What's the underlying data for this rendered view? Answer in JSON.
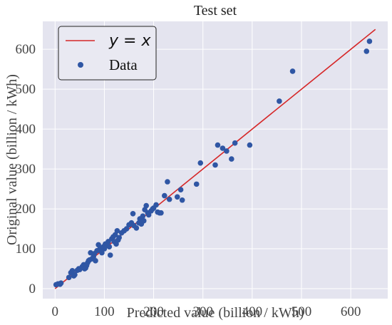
{
  "chart_data": {
    "type": "scatter",
    "title": "Test set",
    "xlabel": "Predicted value (billion / kWh)",
    "ylabel": "Original value (billion / kWh)",
    "xlim": [
      -25,
      675
    ],
    "ylim": [
      -25,
      670
    ],
    "xticks": [
      0,
      100,
      200,
      300,
      400,
      500,
      600
    ],
    "yticks": [
      0,
      100,
      200,
      300,
      400,
      500,
      600
    ],
    "grid": true,
    "legend_position": "top-left",
    "colors": {
      "background": "#e4e4ef",
      "grid": "#ffffff",
      "line": "#d62728",
      "points": "#2f56a4"
    },
    "series": [
      {
        "name": "y = x",
        "type": "line",
        "legend_math": {
          "left": "y",
          "op": " = ",
          "right": "x"
        },
        "x": [
          0,
          650
        ],
        "y": [
          0,
          650
        ]
      },
      {
        "name": "Data",
        "type": "scatter",
        "points": [
          [
            2,
            10
          ],
          [
            6,
            12
          ],
          [
            10,
            11
          ],
          [
            12,
            14
          ],
          [
            28,
            28
          ],
          [
            32,
            40
          ],
          [
            35,
            45
          ],
          [
            38,
            32
          ],
          [
            40,
            35
          ],
          [
            45,
            46
          ],
          [
            48,
            50
          ],
          [
            50,
            48
          ],
          [
            55,
            55
          ],
          [
            58,
            60
          ],
          [
            60,
            50
          ],
          [
            62,
            52
          ],
          [
            64,
            58
          ],
          [
            66,
            65
          ],
          [
            68,
            70
          ],
          [
            70,
            72
          ],
          [
            72,
            90
          ],
          [
            75,
            75
          ],
          [
            78,
            80
          ],
          [
            80,
            88
          ],
          [
            82,
            70
          ],
          [
            85,
            95
          ],
          [
            88,
            110
          ],
          [
            90,
            98
          ],
          [
            92,
            102
          ],
          [
            95,
            90
          ],
          [
            98,
            105
          ],
          [
            100,
            100
          ],
          [
            102,
            112
          ],
          [
            105,
            108
          ],
          [
            108,
            118
          ],
          [
            110,
            105
          ],
          [
            112,
            84
          ],
          [
            115,
            125
          ],
          [
            118,
            130
          ],
          [
            120,
            118
          ],
          [
            122,
            135
          ],
          [
            124,
            112
          ],
          [
            126,
            145
          ],
          [
            128,
            122
          ],
          [
            130,
            128
          ],
          [
            135,
            140
          ],
          [
            140,
            145
          ],
          [
            145,
            150
          ],
          [
            150,
            160
          ],
          [
            155,
            165
          ],
          [
            158,
            188
          ],
          [
            160,
            158
          ],
          [
            165,
            152
          ],
          [
            170,
            165
          ],
          [
            172,
            175
          ],
          [
            175,
            162
          ],
          [
            178,
            182
          ],
          [
            180,
            170
          ],
          [
            182,
            198
          ],
          [
            185,
            208
          ],
          [
            188,
            190
          ],
          [
            190,
            185
          ],
          [
            195,
            195
          ],
          [
            198,
            200
          ],
          [
            200,
            202
          ],
          [
            205,
            210
          ],
          [
            208,
            192
          ],
          [
            212,
            190
          ],
          [
            215,
            190
          ],
          [
            222,
            233
          ],
          [
            228,
            268
          ],
          [
            232,
            224
          ],
          [
            248,
            230
          ],
          [
            255,
            248
          ],
          [
            258,
            222
          ],
          [
            287,
            262
          ],
          [
            295,
            315
          ],
          [
            325,
            310
          ],
          [
            330,
            360
          ],
          [
            340,
            352
          ],
          [
            348,
            345
          ],
          [
            358,
            325
          ],
          [
            365,
            365
          ],
          [
            395,
            360
          ],
          [
            455,
            470
          ],
          [
            482,
            545
          ],
          [
            632,
            595
          ],
          [
            638,
            620
          ]
        ]
      }
    ]
  }
}
